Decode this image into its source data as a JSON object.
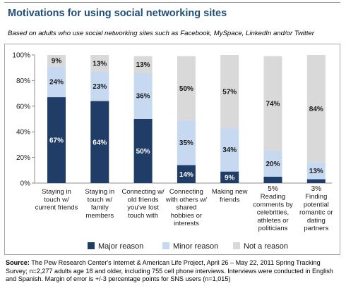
{
  "title": "Motivations for using social networking sites",
  "subtitle": "Based on adults who use social networking sites such as Facebook, MySpace,  LinkedIn and/or Twitter",
  "colors": {
    "major": "#1f3d66",
    "minor": "#c6d9f1",
    "not": "#d9d9d9",
    "title": "#1f4e79"
  },
  "chart_data": {
    "type": "bar",
    "stacked": true,
    "categories": [
      "Staying in touch w/ current friends",
      "Staying in touch w/ family members",
      "Connecting w/ old friends you've lost touch with",
      "Connecting with others w/ shared hobbies or interests",
      "Making new friends",
      "Reading comments by celebrities, athletes or politicians",
      "Finding potential romantic or dating partners"
    ],
    "category_lines": [
      [
        "Staying in",
        "touch w/",
        "current friends"
      ],
      [
        "Staying in",
        "touch w/",
        "family",
        "members"
      ],
      [
        "Connecting w/",
        "old friends",
        "you've lost",
        "touch with"
      ],
      [
        "Connecting",
        "with others w/",
        "shared",
        "hobbies or",
        "interests"
      ],
      [
        "Making new",
        "friends"
      ],
      [
        "Reading",
        "comments by",
        "celebrities,",
        "athletes or",
        "politicians"
      ],
      [
        "Finding",
        "potential",
        "romantic or",
        "dating",
        "partners"
      ]
    ],
    "series": [
      {
        "name": "Major reason",
        "values": [
          67,
          64,
          50,
          14,
          9,
          5,
          3
        ]
      },
      {
        "name": "Minor reason",
        "values": [
          24,
          23,
          36,
          35,
          34,
          20,
          13
        ]
      },
      {
        "name": "Not a reason",
        "values": [
          9,
          13,
          13,
          50,
          57,
          74,
          84
        ]
      }
    ],
    "data_labels": {
      "major": [
        "67%",
        "64%",
        "50%",
        "14%",
        "9%",
        "",
        ""
      ],
      "minor": [
        "24%",
        "23%",
        "36%",
        "35%",
        "34%",
        "20%",
        "13%"
      ],
      "not": [
        "9%",
        "13%",
        "13%",
        "50%",
        "57%",
        "74%",
        "84%"
      ],
      "above": [
        "",
        "",
        "",
        "",
        "",
        "5%",
        "3%"
      ]
    },
    "yticks": [
      "0%",
      "20%",
      "40%",
      "60%",
      "80%",
      "100%"
    ],
    "ylim": [
      0,
      100
    ],
    "legend_position": "bottom"
  },
  "source": {
    "label": "Source:",
    "text": "The Pew Research Center's Internet & American Life Project, April 26 – May 22, 2011 Spring Tracking Survey; n=2,277 adults age 18 and older, including 755 cell phone interviews. Interviews were conducted in English and Spanish. Margin of error is +/-3 percentage points for SNS users (n=1,015)"
  }
}
